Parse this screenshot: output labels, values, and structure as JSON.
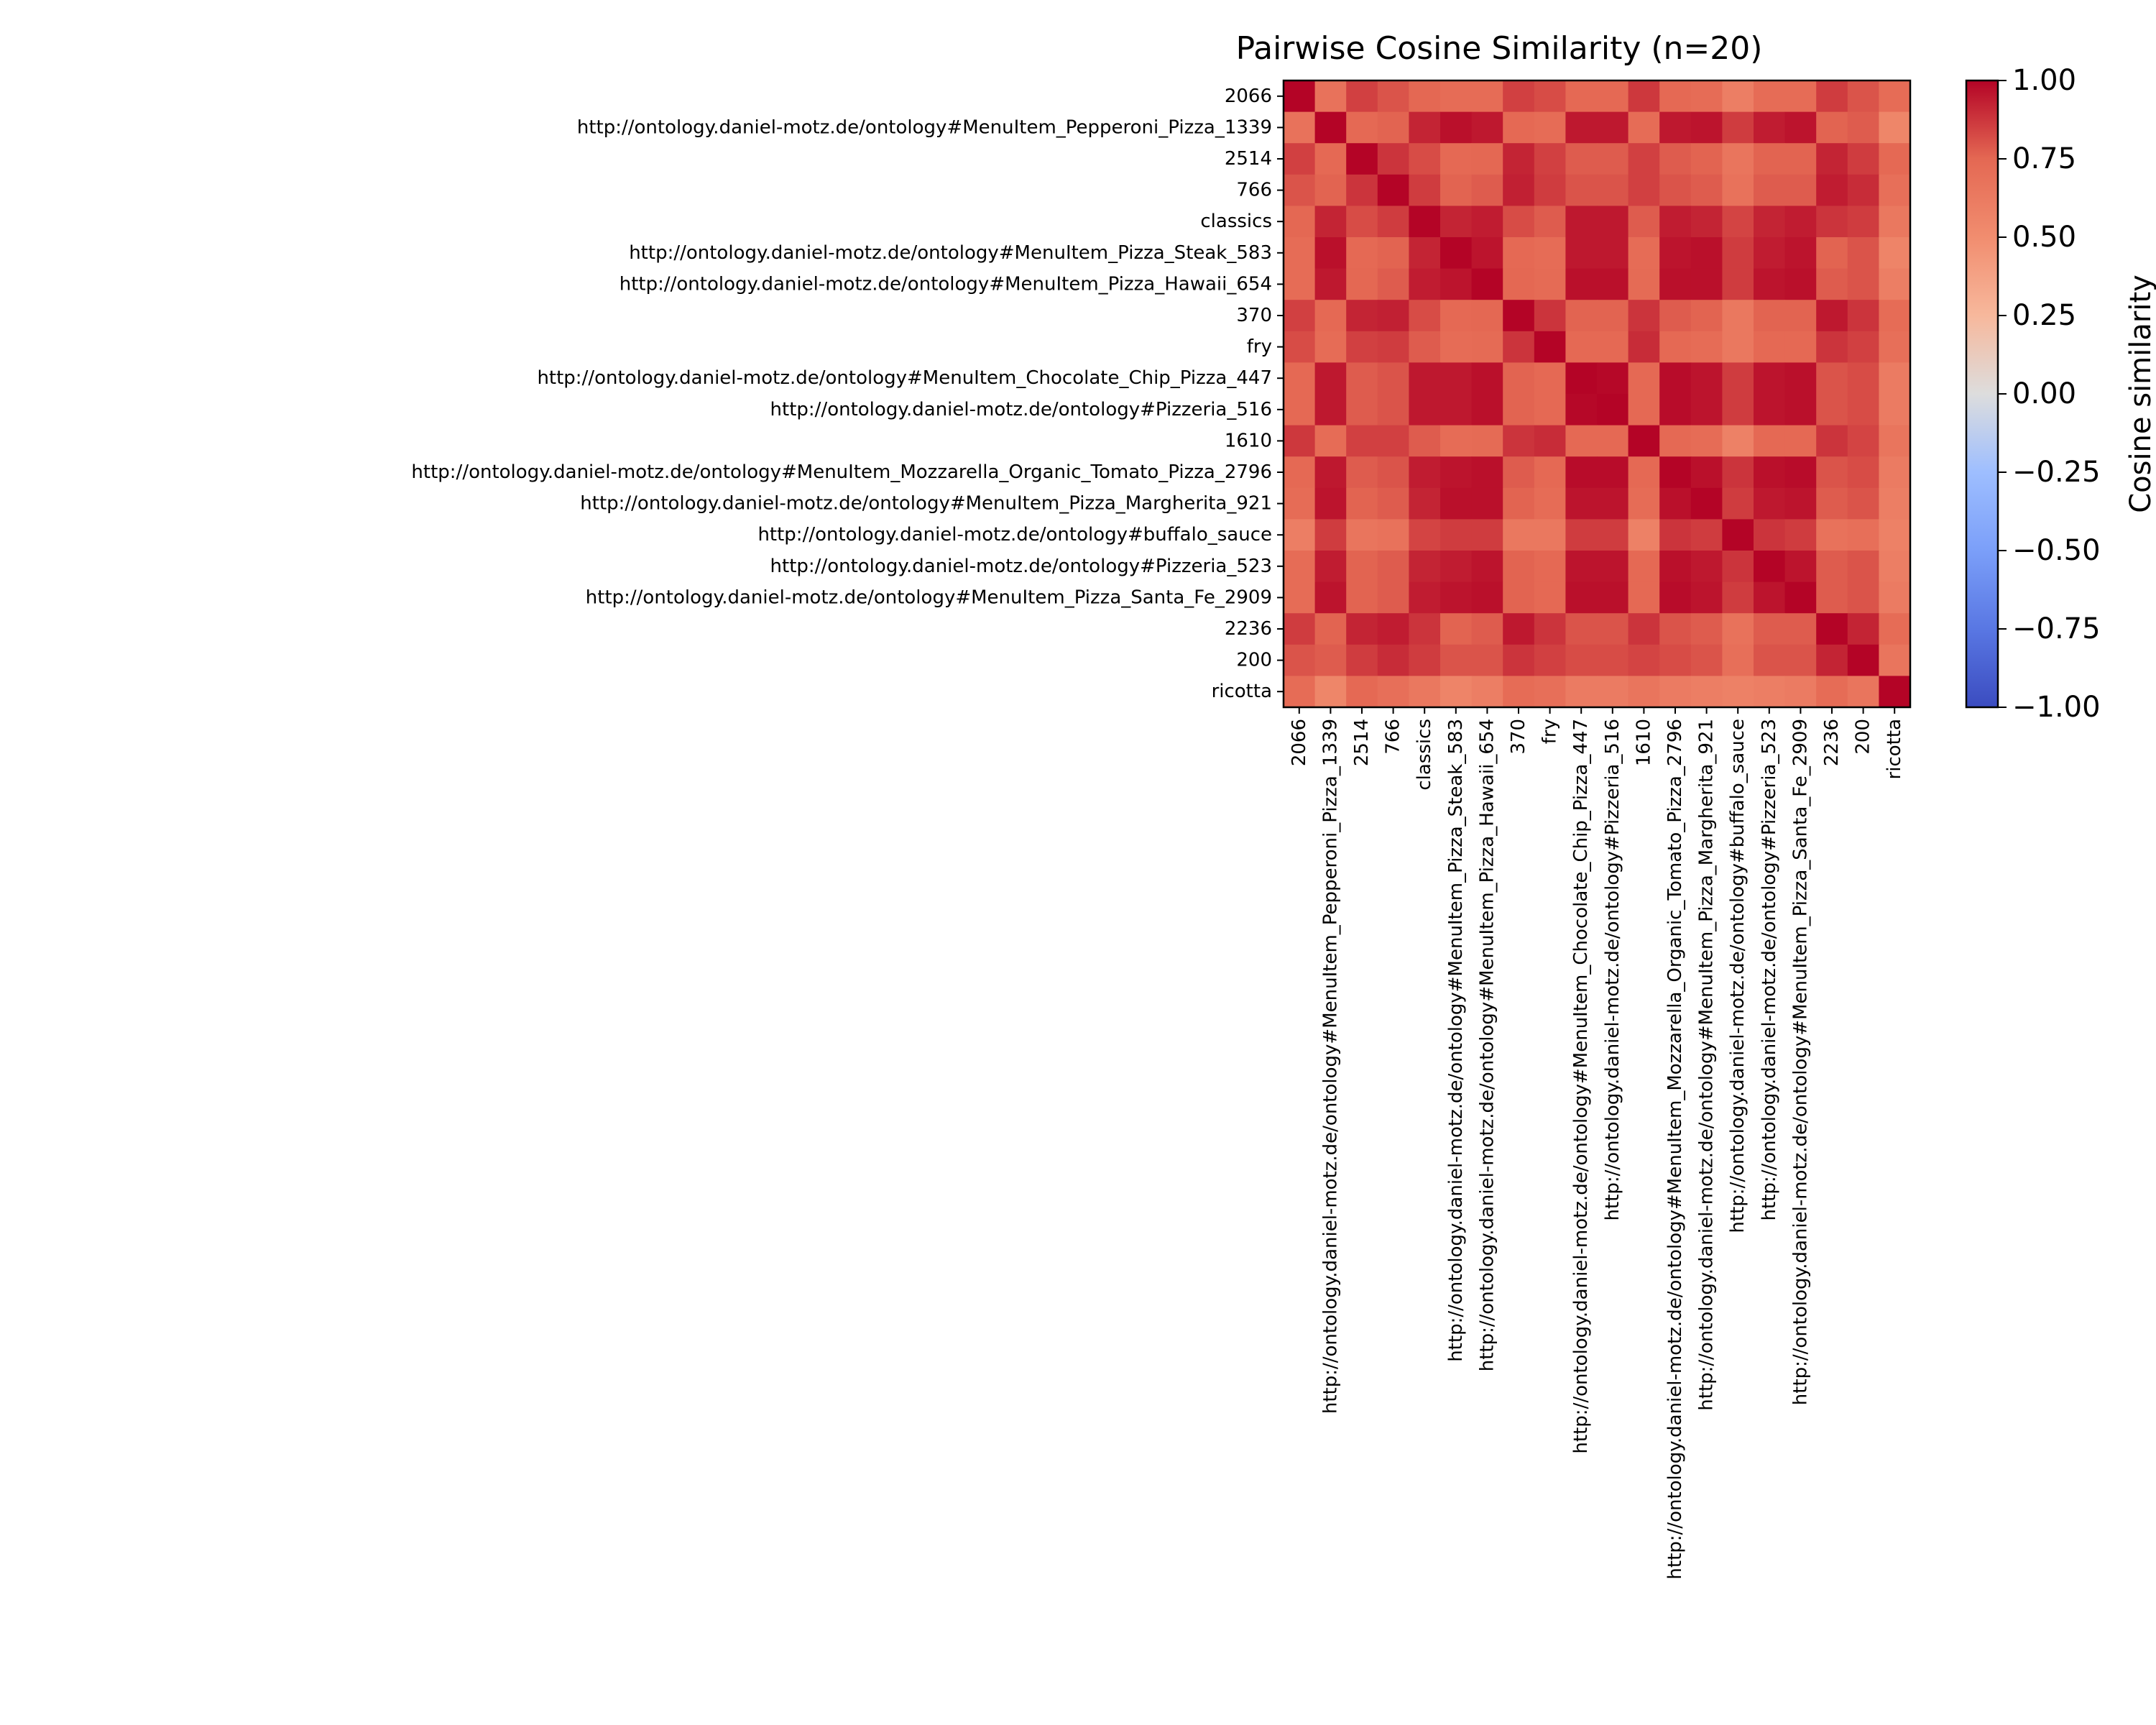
{
  "chart_data": {
    "type": "heatmap",
    "title": "Pairwise Cosine Similarity (n=20)",
    "colorbar": {
      "label": "Cosine similarity",
      "colormap": "coolwarm",
      "range": [
        -1.0,
        1.0
      ],
      "ticks": [
        1.0,
        0.75,
        0.5,
        0.25,
        0.0,
        -0.25,
        -0.5,
        -0.75,
        -1.0
      ],
      "tick_labels": [
        "1.00",
        "0.75",
        "0.50",
        "0.25",
        "0.00",
        "−0.25",
        "−0.50",
        "−0.75",
        "−1.00"
      ]
    },
    "labels": [
      "2066",
      "http://ontology.daniel-motz.de/ontology#MenuItem_Pepperoni_Pizza_1339",
      "2514",
      "766",
      "classics",
      "http://ontology.daniel-motz.de/ontology#MenuItem_Pizza_Steak_583",
      "http://ontology.daniel-motz.de/ontology#MenuItem_Pizza_Hawaii_654",
      "370",
      "fry",
      "http://ontology.daniel-motz.de/ontology#MenuItem_Chocolate_Chip_Pizza_447",
      "http://ontology.daniel-motz.de/ontology#Pizzeria_516",
      "1610",
      "http://ontology.daniel-motz.de/ontology#MenuItem_Mozzarella_Organic_Tomato_Pizza_2796",
      "http://ontology.daniel-motz.de/ontology#MenuItem_Pizza_Margherita_921",
      "http://ontology.daniel-motz.de/ontology#buffalo_sauce",
      "http://ontology.daniel-motz.de/ontology#Pizzeria_523",
      "http://ontology.daniel-motz.de/ontology#MenuItem_Pizza_Santa_Fe_2909",
      "2236",
      "200",
      "ricotta"
    ],
    "matrix": [
      [
        1.0,
        0.68,
        0.85,
        0.8,
        0.75,
        0.72,
        0.72,
        0.85,
        0.82,
        0.74,
        0.74,
        0.87,
        0.74,
        0.72,
        0.6,
        0.72,
        0.72,
        0.86,
        0.8,
        0.72
      ],
      [
        0.68,
        1.0,
        0.74,
        0.76,
        0.92,
        0.97,
        0.95,
        0.74,
        0.72,
        0.95,
        0.95,
        0.72,
        0.95,
        0.96,
        0.86,
        0.94,
        0.96,
        0.76,
        0.78,
        0.55
      ],
      [
        0.85,
        0.74,
        1.0,
        0.88,
        0.82,
        0.74,
        0.75,
        0.92,
        0.85,
        0.78,
        0.78,
        0.85,
        0.78,
        0.76,
        0.66,
        0.76,
        0.76,
        0.92,
        0.86,
        0.74
      ],
      [
        0.8,
        0.76,
        0.88,
        1.0,
        0.86,
        0.76,
        0.78,
        0.93,
        0.86,
        0.8,
        0.8,
        0.85,
        0.8,
        0.78,
        0.68,
        0.78,
        0.78,
        0.94,
        0.9,
        0.7
      ],
      [
        0.75,
        0.92,
        0.82,
        0.86,
        1.0,
        0.92,
        0.94,
        0.82,
        0.78,
        0.95,
        0.95,
        0.78,
        0.94,
        0.92,
        0.84,
        0.92,
        0.94,
        0.88,
        0.86,
        0.64
      ],
      [
        0.72,
        0.97,
        0.74,
        0.76,
        0.92,
        1.0,
        0.96,
        0.74,
        0.72,
        0.95,
        0.95,
        0.72,
        0.96,
        0.97,
        0.86,
        0.94,
        0.96,
        0.76,
        0.8,
        0.56
      ],
      [
        0.72,
        0.95,
        0.75,
        0.78,
        0.94,
        0.96,
        1.0,
        0.75,
        0.73,
        0.97,
        0.97,
        0.73,
        0.97,
        0.97,
        0.86,
        0.96,
        0.97,
        0.78,
        0.8,
        0.6
      ],
      [
        0.85,
        0.74,
        0.92,
        0.93,
        0.82,
        0.74,
        0.75,
        1.0,
        0.88,
        0.76,
        0.76,
        0.88,
        0.78,
        0.76,
        0.64,
        0.76,
        0.76,
        0.95,
        0.88,
        0.72
      ],
      [
        0.82,
        0.72,
        0.85,
        0.86,
        0.78,
        0.72,
        0.73,
        0.88,
        1.0,
        0.74,
        0.74,
        0.9,
        0.74,
        0.72,
        0.64,
        0.74,
        0.74,
        0.88,
        0.85,
        0.7
      ],
      [
        0.74,
        0.95,
        0.78,
        0.8,
        0.95,
        0.95,
        0.97,
        0.76,
        0.74,
        1.0,
        0.99,
        0.74,
        0.98,
        0.96,
        0.86,
        0.96,
        0.97,
        0.8,
        0.82,
        0.62
      ],
      [
        0.74,
        0.95,
        0.78,
        0.8,
        0.95,
        0.95,
        0.97,
        0.76,
        0.74,
        0.99,
        1.0,
        0.74,
        0.98,
        0.96,
        0.86,
        0.96,
        0.97,
        0.8,
        0.82,
        0.62
      ],
      [
        0.87,
        0.72,
        0.85,
        0.85,
        0.78,
        0.72,
        0.73,
        0.88,
        0.9,
        0.74,
        0.74,
        1.0,
        0.74,
        0.72,
        0.58,
        0.74,
        0.74,
        0.88,
        0.84,
        0.66
      ],
      [
        0.74,
        0.95,
        0.78,
        0.8,
        0.94,
        0.96,
        0.97,
        0.78,
        0.74,
        0.98,
        0.98,
        0.74,
        1.0,
        0.97,
        0.88,
        0.97,
        0.98,
        0.8,
        0.82,
        0.62
      ],
      [
        0.72,
        0.96,
        0.76,
        0.78,
        0.92,
        0.97,
        0.97,
        0.76,
        0.72,
        0.96,
        0.96,
        0.72,
        0.97,
        1.0,
        0.86,
        0.95,
        0.96,
        0.78,
        0.8,
        0.6
      ],
      [
        0.6,
        0.86,
        0.66,
        0.68,
        0.84,
        0.86,
        0.86,
        0.64,
        0.64,
        0.86,
        0.86,
        0.58,
        0.88,
        0.86,
        1.0,
        0.88,
        0.86,
        0.68,
        0.7,
        0.58
      ],
      [
        0.72,
        0.94,
        0.76,
        0.78,
        0.92,
        0.94,
        0.96,
        0.76,
        0.74,
        0.96,
        0.96,
        0.74,
        0.97,
        0.95,
        0.88,
        1.0,
        0.96,
        0.78,
        0.8,
        0.6
      ],
      [
        0.72,
        0.96,
        0.76,
        0.78,
        0.94,
        0.96,
        0.97,
        0.76,
        0.74,
        0.97,
        0.97,
        0.74,
        0.98,
        0.96,
        0.86,
        0.96,
        1.0,
        0.78,
        0.8,
        0.62
      ],
      [
        0.86,
        0.76,
        0.92,
        0.94,
        0.88,
        0.76,
        0.78,
        0.95,
        0.88,
        0.8,
        0.8,
        0.88,
        0.8,
        0.78,
        0.68,
        0.78,
        0.78,
        1.0,
        0.92,
        0.72
      ],
      [
        0.8,
        0.78,
        0.86,
        0.9,
        0.86,
        0.8,
        0.8,
        0.88,
        0.85,
        0.82,
        0.82,
        0.84,
        0.82,
        0.8,
        0.7,
        0.8,
        0.8,
        0.92,
        1.0,
        0.66
      ],
      [
        0.72,
        0.55,
        0.74,
        0.7,
        0.64,
        0.56,
        0.6,
        0.72,
        0.7,
        0.62,
        0.62,
        0.66,
        0.62,
        0.6,
        0.58,
        0.6,
        0.62,
        0.72,
        0.66,
        1.0
      ]
    ]
  }
}
